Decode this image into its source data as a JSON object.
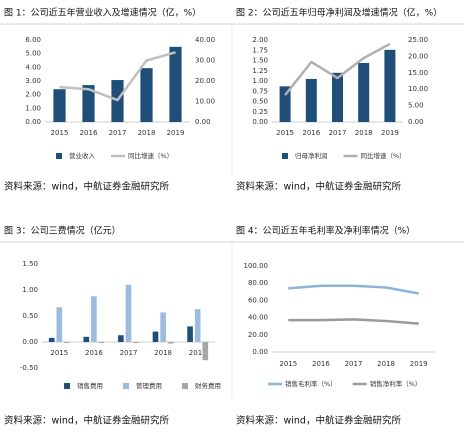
{
  "chart_data": [
    {
      "type": "combo",
      "title": "图 1：公司近五年营业收入及增速情况（亿，%）",
      "source": "资料来源：wind，中航证券金融研究所",
      "categories": [
        "2015",
        "2016",
        "2017",
        "2018",
        "2019"
      ],
      "series": [
        {
          "name": "营业收入",
          "color": "#1f4e79",
          "values": [
            2.4,
            2.7,
            3.07,
            3.94,
            5.5
          ]
        },
        {
          "name": "同比增速（%）",
          "color": "#c0c0c0",
          "axis": "y2",
          "values": [
            17,
            16,
            10.7,
            30,
            34
          ]
        }
      ],
      "ylim": [
        0,
        6
      ],
      "yticks": [
        {
          "value": 0,
          "label": "0.00"
        },
        {
          "value": 1,
          "label": "1.00"
        },
        {
          "value": 2,
          "label": "2.00"
        },
        {
          "value": 3,
          "label": "3.00"
        },
        {
          "value": 4,
          "label": "4.00"
        },
        {
          "value": 5,
          "label": "5.00"
        },
        {
          "value": 6,
          "label": "6.00"
        }
      ],
      "y2lim": [
        0,
        40
      ],
      "y2ticks": [
        {
          "value": 0,
          "label": "0.00"
        },
        {
          "value": 10,
          "label": "10.00"
        },
        {
          "value": 20,
          "label": "20.00"
        },
        {
          "value": 30,
          "label": "30.00"
        },
        {
          "value": 40,
          "label": "40.00"
        }
      ]
    },
    {
      "type": "combo",
      "title": "图 2：公司近五年归母净利润及增速情况（亿，%）",
      "source": "资料来源：wind，中航证券金融研究所",
      "categories": [
        "2015",
        "2016",
        "2017",
        "2018",
        "2019"
      ],
      "series": [
        {
          "name": "归母净利润",
          "color": "#1f4e79",
          "values": [
            0.87,
            1.05,
            1.2,
            1.44,
            1.76
          ]
        },
        {
          "name": "同比增速（%）",
          "color": "#b0b0b0",
          "axis": "y2",
          "values": [
            8.2,
            18.3,
            13.4,
            19.5,
            23.8
          ]
        }
      ],
      "ylim": [
        0,
        2
      ],
      "yticks": [
        {
          "value": 0,
          "label": "0.00"
        },
        {
          "value": 0.25,
          "label": "0.25"
        },
        {
          "value": 0.5,
          "label": "0.50"
        },
        {
          "value": 0.75,
          "label": "0.75"
        },
        {
          "value": 1,
          "label": "1.00"
        },
        {
          "value": 1.25,
          "label": "1.25"
        },
        {
          "value": 1.5,
          "label": "1.50"
        },
        {
          "value": 1.75,
          "label": "1.75"
        },
        {
          "value": 2,
          "label": "2.00"
        }
      ],
      "y2lim": [
        0,
        25
      ],
      "y2ticks": [
        {
          "value": 0,
          "label": "0.00"
        },
        {
          "value": 5,
          "label": "5.00"
        },
        {
          "value": 10,
          "label": "10.00"
        },
        {
          "value": 15,
          "label": "15.00"
        },
        {
          "value": 20,
          "label": "20.00"
        },
        {
          "value": 25,
          "label": "25.00"
        }
      ]
    },
    {
      "type": "bar",
      "title": "图 3：公司三费情况（亿元）",
      "source": "资料来源：wind，中航证券金融研究所",
      "categories": [
        "2015",
        "2016",
        "2017",
        "2018",
        "2019"
      ],
      "series": [
        {
          "name": "销售费用",
          "color": "#1f4e79",
          "values": [
            0.08,
            0.1,
            0.13,
            0.2,
            0.3
          ]
        },
        {
          "name": "管理费用",
          "color": "#9dbbe0",
          "values": [
            0.67,
            0.88,
            1.1,
            0.57,
            0.63
          ]
        },
        {
          "name": "财务费用",
          "color": "#a6a6a6",
          "values": [
            -0.02,
            -0.02,
            -0.02,
            -0.03,
            -0.35
          ]
        }
      ],
      "ylim": [
        -0.5,
        1.5
      ],
      "yticks": [
        {
          "value": -0.5,
          "label": "-0.50"
        },
        {
          "value": 0,
          "label": "0.00"
        },
        {
          "value": 0.5,
          "label": "0.50"
        },
        {
          "value": 1,
          "label": "1.00"
        },
        {
          "value": 1.5,
          "label": "1.50"
        }
      ]
    },
    {
      "type": "line",
      "title": "图 4：公司近五年毛利率及净利率情况（%）",
      "source": "资料来源：wind，中航证券金融研究所",
      "categories": [
        "2015",
        "2016",
        "2017",
        "2018",
        "2019"
      ],
      "series": [
        {
          "name": "销售毛利率（%）",
          "color": "#8fb4d9",
          "values": [
            74,
            77,
            77,
            75,
            68
          ]
        },
        {
          "name": "销售净利率（%）",
          "color": "#9a9a9a",
          "values": [
            37,
            37,
            38,
            36,
            33
          ]
        }
      ],
      "ylim": [
        0,
        100
      ],
      "yticks": [
        {
          "value": 0,
          "label": "0.00"
        },
        {
          "value": 20,
          "label": "20.00"
        },
        {
          "value": 40,
          "label": "40.00"
        },
        {
          "value": 60,
          "label": "60.00"
        },
        {
          "value": 80,
          "label": "80.00"
        },
        {
          "value": 100,
          "label": "100.00"
        }
      ]
    }
  ]
}
